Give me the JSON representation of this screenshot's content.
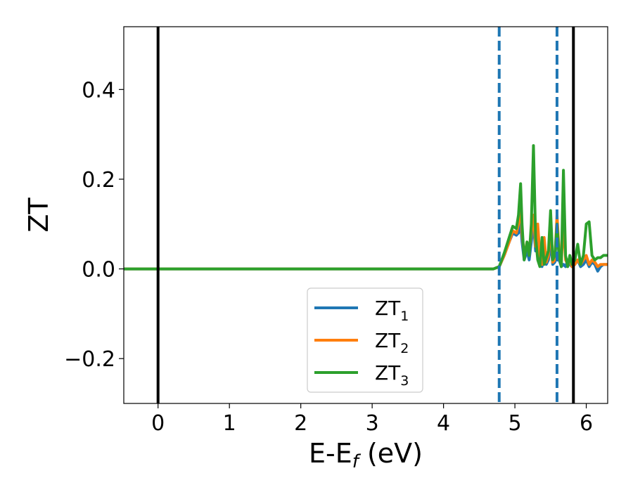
{
  "chart_data": {
    "type": "line",
    "xlabel_main": "E-E",
    "xlabel_sub": "f",
    "xlabel_unit": " (eV)",
    "ylabel": "ZT",
    "xlim": [
      -0.48,
      6.3
    ],
    "ylim": [
      -0.3,
      0.54
    ],
    "x_ticks": [
      0,
      1,
      2,
      3,
      4,
      5,
      6
    ],
    "x_tick_labels": [
      "0",
      "1",
      "2",
      "3",
      "4",
      "5",
      "6"
    ],
    "y_ticks": [
      -0.2,
      0.0,
      0.2,
      0.4
    ],
    "y_tick_labels": [
      "−0.2",
      "0.0",
      "0.2",
      "0.4"
    ],
    "vertical_lines": [
      {
        "x": 0.0,
        "style": "solid",
        "color": "#000000"
      },
      {
        "x": 5.82,
        "style": "solid",
        "color": "#000000"
      },
      {
        "x": 4.78,
        "style": "dashed",
        "color": "#1f77b4"
      },
      {
        "x": 5.59,
        "style": "dashed",
        "color": "#1f77b4"
      }
    ],
    "legend": {
      "position": "lower-center"
    },
    "series": [
      {
        "name": "ZT",
        "sub": "1",
        "color": "#1f77b4",
        "x": [
          -0.48,
          4.7,
          4.78,
          4.85,
          4.92,
          4.97,
          5.02,
          5.05,
          5.08,
          5.1,
          5.13,
          5.17,
          5.2,
          5.23,
          5.26,
          5.29,
          5.32,
          5.35,
          5.38,
          5.41,
          5.44,
          5.47,
          5.5,
          5.53,
          5.56,
          5.59,
          5.62,
          5.65,
          5.68,
          5.71,
          5.74,
          5.77,
          5.8,
          5.84,
          5.88,
          5.92,
          5.96,
          6.0,
          6.04,
          6.08,
          6.12,
          6.16,
          6.2,
          6.24,
          6.3
        ],
        "y": [
          0.0,
          0.0,
          0.005,
          0.03,
          0.06,
          0.08,
          0.075,
          0.08,
          0.1,
          0.06,
          0.02,
          0.04,
          0.02,
          0.06,
          0.1,
          0.04,
          0.08,
          0.02,
          0.005,
          0.05,
          0.01,
          0.02,
          0.06,
          0.01,
          0.015,
          0.1,
          0.02,
          0.005,
          0.01,
          0.005,
          0.02,
          0.01,
          0.005,
          0.01,
          0.02,
          0.005,
          0.01,
          0.02,
          0.005,
          0.015,
          0.01,
          -0.005,
          0.005,
          0.01,
          0.01
        ]
      },
      {
        "name": "ZT",
        "sub": "2",
        "color": "#ff7f0e",
        "x": [
          -0.48,
          4.7,
          4.78,
          4.85,
          4.92,
          4.97,
          5.02,
          5.05,
          5.08,
          5.1,
          5.13,
          5.17,
          5.2,
          5.23,
          5.26,
          5.29,
          5.32,
          5.35,
          5.38,
          5.41,
          5.44,
          5.47,
          5.5,
          5.53,
          5.56,
          5.59,
          5.62,
          5.65,
          5.68,
          5.71,
          5.74,
          5.77,
          5.8,
          5.84,
          5.88,
          5.92,
          5.96,
          6.0,
          6.04,
          6.08,
          6.12,
          6.16,
          6.2,
          6.24,
          6.3
        ],
        "y": [
          0.0,
          0.0,
          0.005,
          0.03,
          0.06,
          0.085,
          0.08,
          0.1,
          0.14,
          0.08,
          0.03,
          0.06,
          0.04,
          0.08,
          0.12,
          0.05,
          0.1,
          0.03,
          0.01,
          0.07,
          0.015,
          0.03,
          0.1,
          0.015,
          0.02,
          0.12,
          0.04,
          0.01,
          0.11,
          0.02,
          0.01,
          0.02,
          0.005,
          0.01,
          0.02,
          0.01,
          0.02,
          0.03,
          0.01,
          0.02,
          0.015,
          0.005,
          0.01,
          0.01,
          0.01
        ]
      },
      {
        "name": "ZT",
        "sub": "3",
        "color": "#2ca02c",
        "x": [
          -0.48,
          4.7,
          4.78,
          4.85,
          4.92,
          4.97,
          5.02,
          5.05,
          5.08,
          5.1,
          5.13,
          5.17,
          5.2,
          5.23,
          5.26,
          5.29,
          5.32,
          5.35,
          5.38,
          5.41,
          5.44,
          5.47,
          5.5,
          5.53,
          5.56,
          5.59,
          5.62,
          5.65,
          5.68,
          5.71,
          5.74,
          5.77,
          5.8,
          5.84,
          5.88,
          5.92,
          5.96,
          6.0,
          6.04,
          6.08,
          6.12,
          6.16,
          6.2,
          6.24,
          6.3
        ],
        "y": [
          0.0,
          0.0,
          0.005,
          0.035,
          0.07,
          0.095,
          0.09,
          0.12,
          0.19,
          0.1,
          0.02,
          0.06,
          0.03,
          0.1,
          0.275,
          0.07,
          0.02,
          0.005,
          0.07,
          0.01,
          0.025,
          0.04,
          0.13,
          0.02,
          0.03,
          0.1,
          0.03,
          0.005,
          0.22,
          0.03,
          0.005,
          0.03,
          0.01,
          0.02,
          0.055,
          0.01,
          0.03,
          0.1,
          0.105,
          0.03,
          0.02,
          0.025,
          0.025,
          0.03,
          0.03
        ]
      }
    ]
  }
}
